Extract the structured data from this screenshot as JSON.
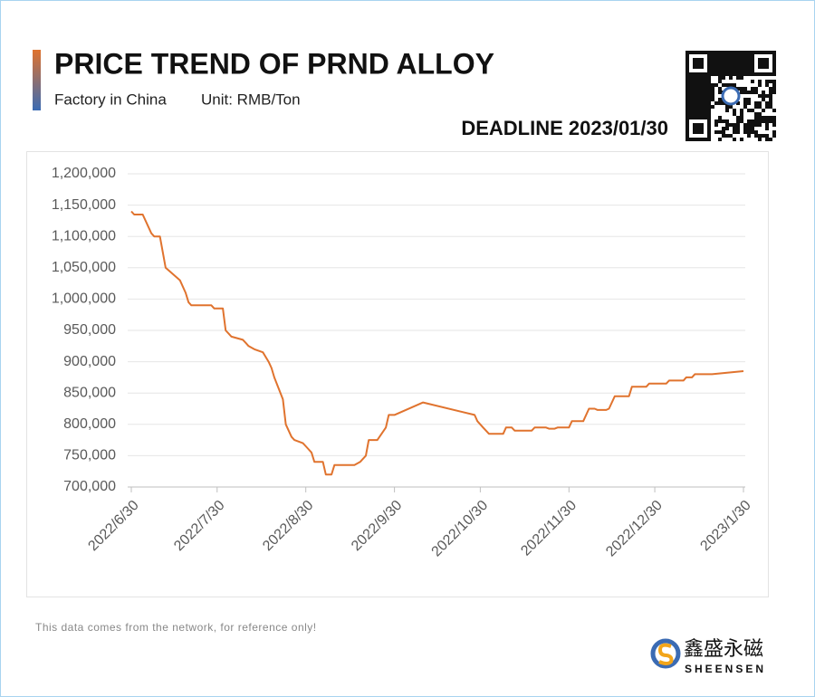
{
  "chart_data": {
    "type": "line",
    "title": "PRICE TREND OF PRND ALLOY",
    "subtitle": [
      "Factory in China",
      "Unit: RMB/Ton"
    ],
    "annotation": "DEADLINE 2023/01/30",
    "source_note": "This data comes from the network, for reference only!",
    "brand": [
      "鑫盛永磁",
      "SHEENSEN"
    ],
    "color": "#e0732e",
    "grid": true,
    "x": [
      "2022/6/30",
      "2022/7/1",
      "2022/7/4",
      "2022/7/5",
      "2022/7/7",
      "2022/7/8",
      "2022/7/10",
      "2022/7/12",
      "2022/7/17",
      "2022/7/19",
      "2022/7/20",
      "2022/7/21",
      "2022/7/28",
      "2022/7/29",
      "2022/8/1",
      "2022/8/2",
      "2022/8/4",
      "2022/8/8",
      "2022/8/9",
      "2022/8/10",
      "2022/8/12",
      "2022/8/15",
      "2022/8/17",
      "2022/8/18",
      "2022/8/19",
      "2022/8/22",
      "2022/8/23",
      "2022/8/25",
      "2022/8/26",
      "2022/8/29",
      "2022/8/30",
      "2022/8/31",
      "2022/9/1",
      "2022/9/2",
      "2022/9/5",
      "2022/9/6",
      "2022/9/8",
      "2022/9/9",
      "2022/9/16",
      "2022/9/18",
      "2022/9/20",
      "2022/9/21",
      "2022/9/24",
      "2022/9/27",
      "2022/9/28",
      "2022/9/30",
      "2022/10/10",
      "2022/10/28",
      "2022/10/29",
      "2022/10/31",
      "2022/11/2",
      "2022/11/7",
      "2022/11/8",
      "2022/11/10",
      "2022/11/11",
      "2022/11/17",
      "2022/11/18",
      "2022/11/22",
      "2022/11/23",
      "2022/11/25",
      "2022/11/26",
      "2022/11/30",
      "2022/12/1",
      "2022/12/5",
      "2022/12/7",
      "2022/12/9",
      "2022/12/10",
      "2022/12/13",
      "2022/12/14",
      "2022/12/16",
      "2022/12/21",
      "2022/12/22",
      "2022/12/27",
      "2022/12/28",
      "2023/1/3",
      "2023/1/4",
      "2023/1/9",
      "2023/1/10",
      "2023/1/12",
      "2023/1/13",
      "2023/1/19",
      "2023/1/30"
    ],
    "values": [
      1140000,
      1135000,
      1135000,
      1125000,
      1105000,
      1100000,
      1100000,
      1050000,
      1030000,
      1010000,
      995000,
      990000,
      990000,
      985000,
      985000,
      950000,
      940000,
      935000,
      930000,
      925000,
      920000,
      915000,
      900000,
      890000,
      875000,
      840000,
      800000,
      780000,
      775000,
      770000,
      765000,
      760000,
      755000,
      740000,
      740000,
      720000,
      720000,
      735000,
      735000,
      740000,
      750000,
      775000,
      775000,
      795000,
      815000,
      815000,
      835000,
      815000,
      805000,
      795000,
      785000,
      785000,
      795000,
      795000,
      790000,
      790000,
      795000,
      795000,
      793000,
      793000,
      795000,
      795000,
      805000,
      805000,
      825000,
      825000,
      823000,
      823000,
      825000,
      845000,
      845000,
      860000,
      860000,
      865000,
      865000,
      870000,
      870000,
      875000,
      875000,
      880000,
      880000,
      885000
    ],
    "xlim": [
      "2022/6/30",
      "2023/1/30"
    ],
    "xticks": [
      "2022/6/30",
      "2022/7/30",
      "2022/8/30",
      "2022/9/30",
      "2022/10/30",
      "2022/11/30",
      "2022/12/30",
      "2023/1/30"
    ],
    "ylim": [
      700000,
      1200000
    ],
    "yticks": [
      {
        "value": 700000,
        "label": "700,000"
      },
      {
        "value": 750000,
        "label": "750,000"
      },
      {
        "value": 800000,
        "label": "800,000"
      },
      {
        "value": 850000,
        "label": "850,000"
      },
      {
        "value": 900000,
        "label": "900,000"
      },
      {
        "value": 950000,
        "label": "950,000"
      },
      {
        "value": 1000000,
        "label": "1,000,000"
      },
      {
        "value": 1050000,
        "label": "1,050,000"
      },
      {
        "value": 1100000,
        "label": "1,100,000"
      },
      {
        "value": 1150000,
        "label": "1,150,000"
      },
      {
        "value": 1200000,
        "label": "1,200,000"
      }
    ]
  }
}
